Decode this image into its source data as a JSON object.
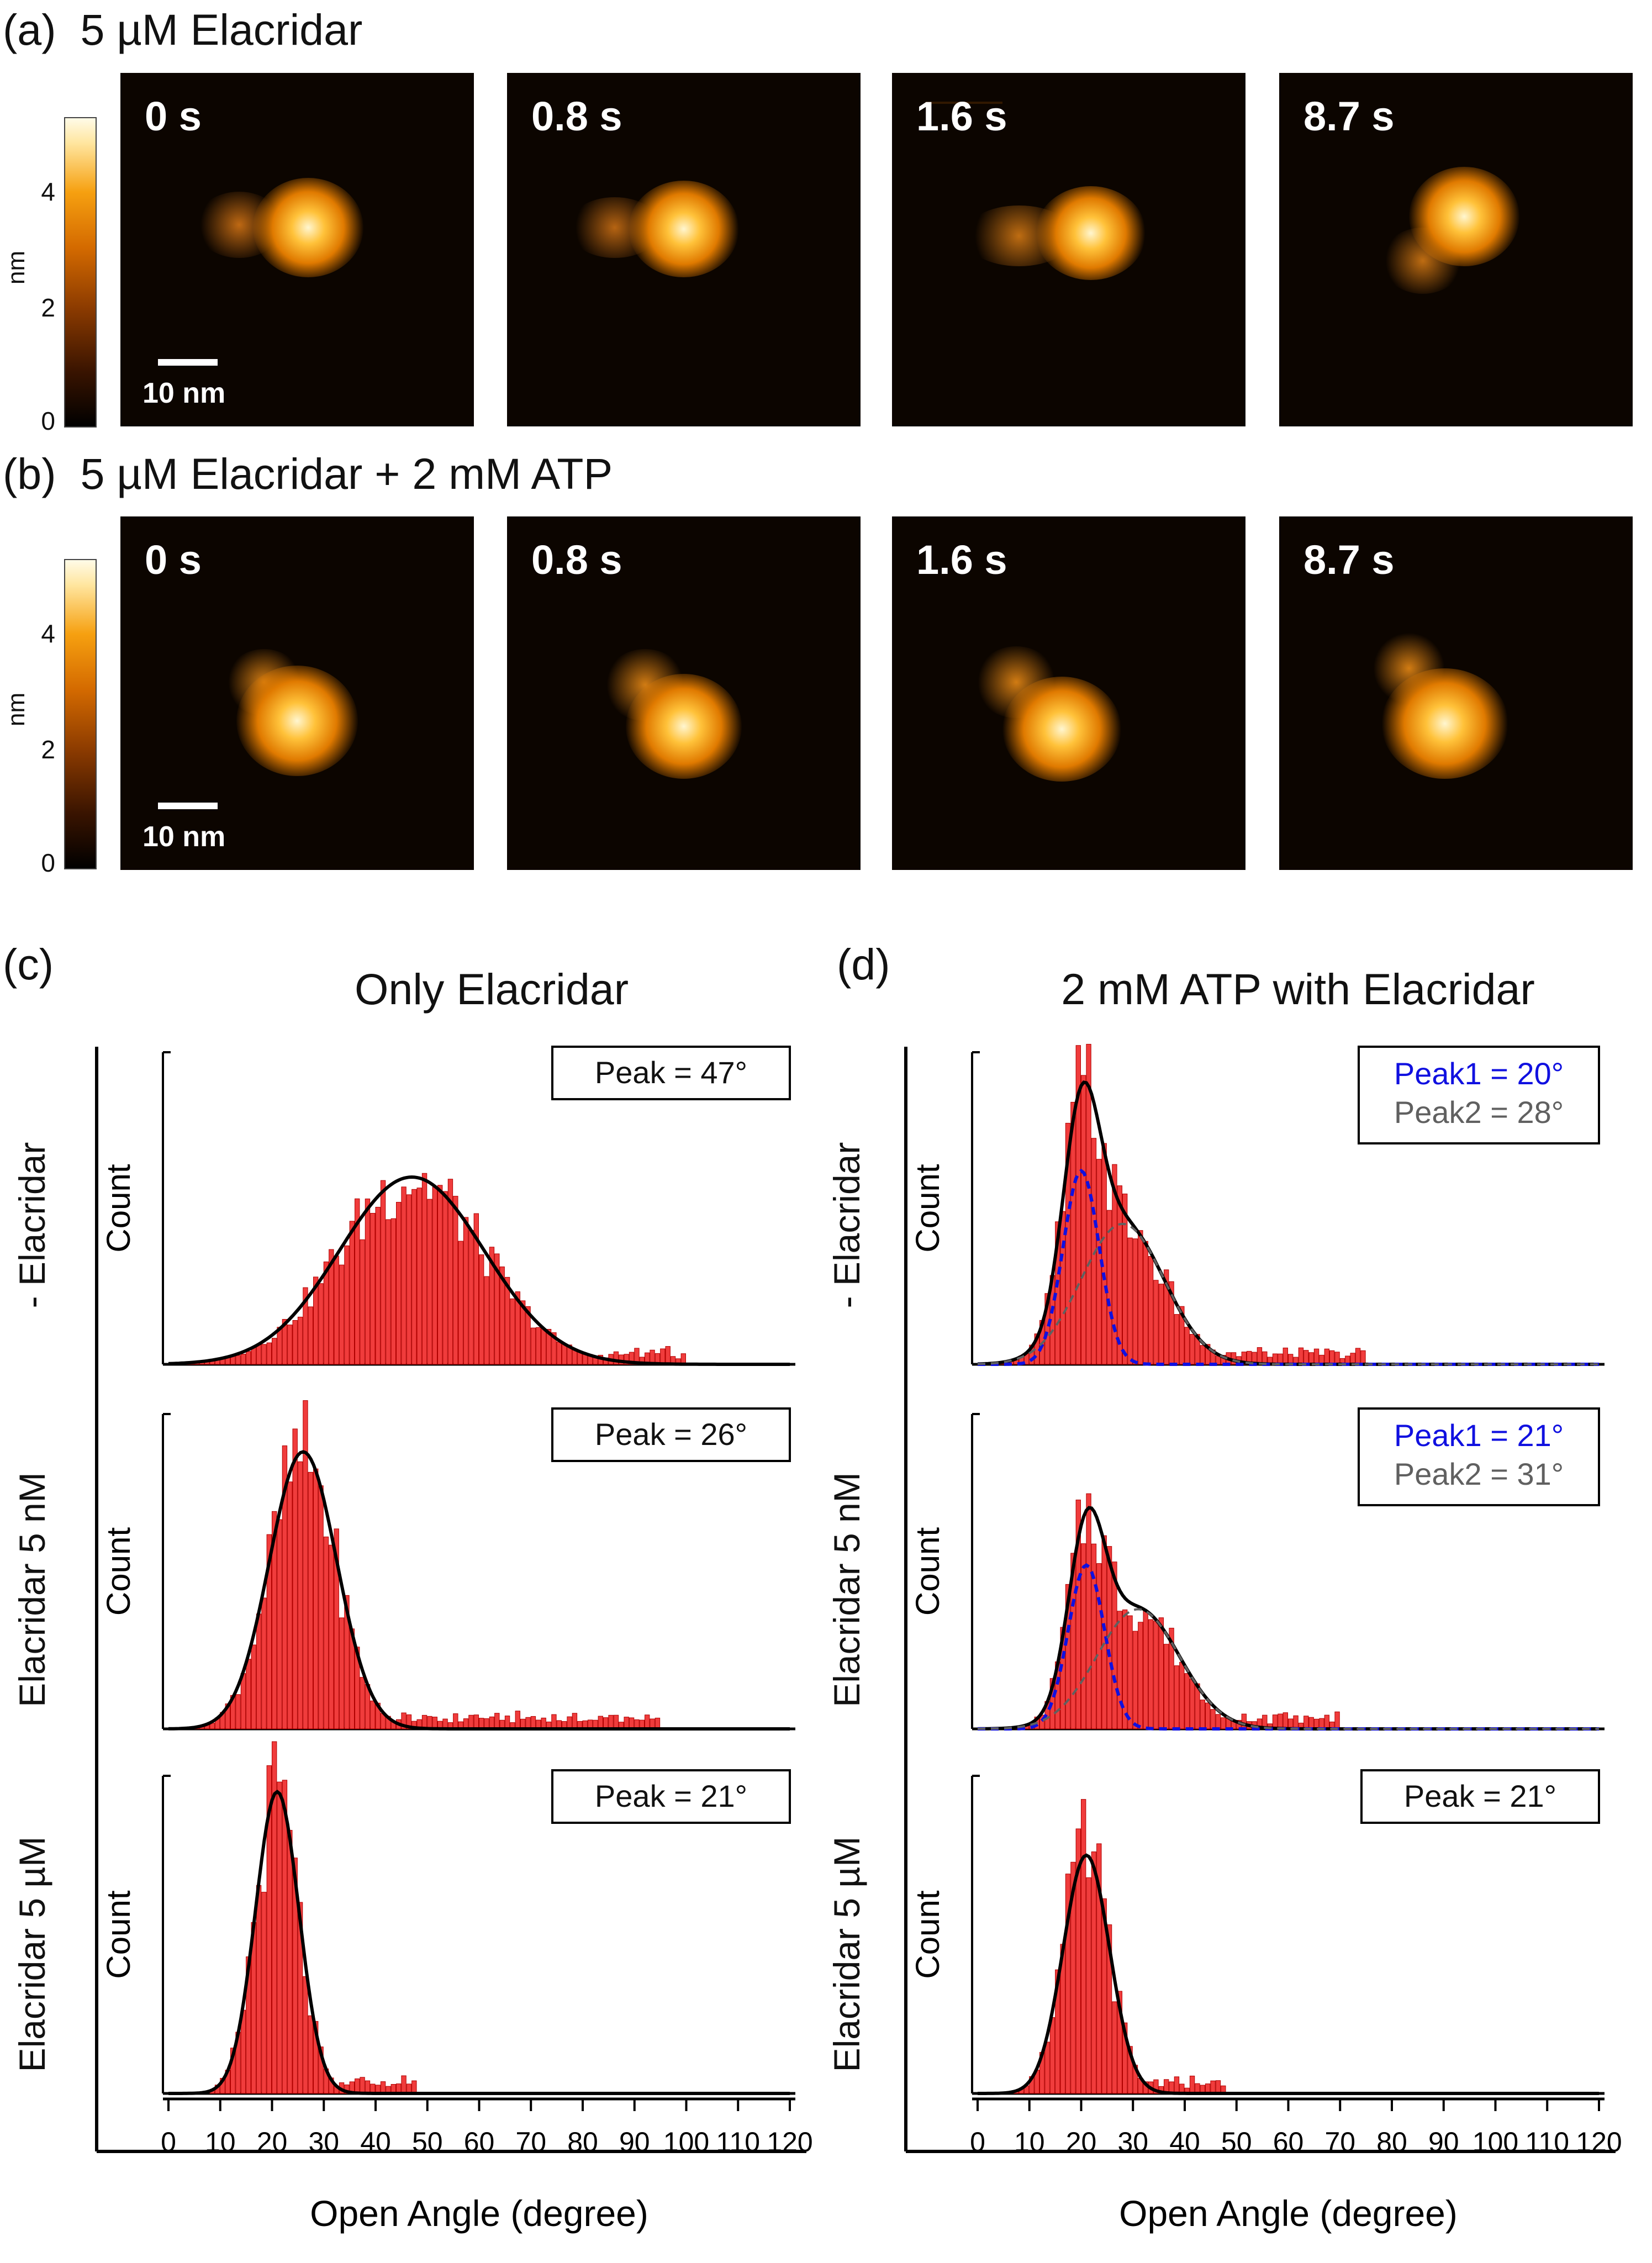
{
  "panels": {
    "a": {
      "label": "(a)",
      "title": "5 µM Elacridar"
    },
    "b": {
      "label": "(b)",
      "title": "5 µM Elacridar + 2 mM ATP"
    },
    "c": {
      "label": "(c)",
      "title": "Only Elacridar"
    },
    "d": {
      "label": "(d)",
      "title": "2 mM ATP with Elacridar"
    }
  },
  "afm": {
    "times": [
      "0 s",
      "0.8 s",
      "1.6 s",
      "8.7 s"
    ],
    "scale_label": "10 nm",
    "colorbar": {
      "unit": "nm",
      "ticks": [
        "0",
        "2",
        "4"
      ]
    }
  },
  "row_labels": [
    "- Elacridar",
    "Elacridar 5 nM",
    "Elacridar 5 µM"
  ],
  "colors": {
    "bars": "#f03c3c",
    "bar_edge": "#b00000",
    "fit": "#000000",
    "peak1": "#1010e0",
    "peak2": "#606060"
  },
  "chart_data": [
    {
      "type": "bar",
      "panel": "c",
      "row": "- Elacridar",
      "title": "Only Elacridar",
      "xlabel": "Open Angle (degree)",
      "ylabel": "Count",
      "x_ticks": [
        0,
        10,
        20,
        30,
        40,
        50,
        60,
        70,
        80,
        90,
        100,
        110,
        120
      ],
      "xlim": [
        0,
        120
      ],
      "annotation": [
        "Peak = 47°"
      ],
      "fits": [
        {
          "type": "gaussian",
          "center": 47,
          "sigma": 14,
          "amp": 0.6,
          "style": "solid"
        }
      ],
      "hist": {
        "center": 47,
        "sigma": 14,
        "amp": 0.6,
        "tail_to": 100
      }
    },
    {
      "type": "bar",
      "panel": "c",
      "row": "Elacridar 5 nM",
      "xlabel": "Open Angle (degree)",
      "ylabel": "Count",
      "x_ticks": [
        0,
        10,
        20,
        30,
        40,
        50,
        60,
        70,
        80,
        90,
        100,
        110,
        120
      ],
      "xlim": [
        0,
        120
      ],
      "annotation": [
        "Peak = 26°"
      ],
      "fits": [
        {
          "type": "gaussian",
          "center": 26,
          "sigma": 6.5,
          "amp": 0.88,
          "style": "solid"
        }
      ],
      "hist": {
        "center": 26,
        "sigma": 6.5,
        "amp": 0.88,
        "tail_to": 95
      }
    },
    {
      "type": "bar",
      "panel": "c",
      "row": "Elacridar 5 µM",
      "xlabel": "Open Angle (degree)",
      "ylabel": "Count",
      "x_ticks": [
        0,
        10,
        20,
        30,
        40,
        50,
        60,
        70,
        80,
        90,
        100,
        110,
        120
      ],
      "xlim": [
        0,
        120
      ],
      "annotation": [
        "Peak = 21°"
      ],
      "fits": [
        {
          "type": "gaussian",
          "center": 21,
          "sigma": 4.2,
          "amp": 0.95,
          "style": "solid"
        }
      ],
      "hist": {
        "center": 21,
        "sigma": 4.2,
        "amp": 0.95,
        "tail_to": 48
      }
    },
    {
      "type": "bar",
      "panel": "d",
      "row": "- Elacridar",
      "title": "2 mM ATP with Elacridar",
      "xlabel": "Open Angle (degree)",
      "ylabel": "Count",
      "x_ticks": [
        0,
        10,
        20,
        30,
        40,
        50,
        60,
        70,
        80,
        90,
        100,
        110,
        120
      ],
      "xlim": [
        0,
        120
      ],
      "annotation": [
        "Peak1 = 20°",
        "Peak2 = 28°"
      ],
      "fits": [
        {
          "type": "gaussian",
          "center": 20,
          "sigma": 3.5,
          "amp": 0.62,
          "style": "dashed-blue"
        },
        {
          "type": "gaussian",
          "center": 28,
          "sigma": 8,
          "amp": 0.45,
          "style": "dashed-gray"
        }
      ],
      "hist": {
        "center": 24,
        "sigma": 7,
        "amp": 0.92,
        "tail_to": 75
      }
    },
    {
      "type": "bar",
      "panel": "d",
      "row": "Elacridar 5 nM",
      "xlabel": "Open Angle (degree)",
      "ylabel": "Count",
      "x_ticks": [
        0,
        10,
        20,
        30,
        40,
        50,
        60,
        70,
        80,
        90,
        100,
        110,
        120
      ],
      "xlim": [
        0,
        120
      ],
      "annotation": [
        "Peak1 = 21°",
        "Peak2 = 31°"
      ],
      "fits": [
        {
          "type": "gaussian",
          "center": 21,
          "sigma": 3.5,
          "amp": 0.52,
          "style": "dashed-blue"
        },
        {
          "type": "gaussian",
          "center": 31,
          "sigma": 8,
          "amp": 0.38,
          "style": "dashed-gray"
        }
      ],
      "hist": {
        "center": 25,
        "sigma": 8,
        "amp": 0.78,
        "tail_to": 70
      }
    },
    {
      "type": "bar",
      "panel": "d",
      "row": "Elacridar 5 µM",
      "xlabel": "Open Angle (degree)",
      "ylabel": "Count",
      "x_ticks": [
        0,
        10,
        20,
        30,
        40,
        50,
        60,
        70,
        80,
        90,
        100,
        110,
        120
      ],
      "xlim": [
        0,
        120
      ],
      "annotation": [
        "Peak = 21°"
      ],
      "fits": [
        {
          "type": "gaussian",
          "center": 21,
          "sigma": 4.5,
          "amp": 0.75,
          "style": "solid"
        }
      ],
      "hist": {
        "center": 21,
        "sigma": 4.5,
        "amp": 0.78,
        "tail_to": 48
      }
    }
  ]
}
